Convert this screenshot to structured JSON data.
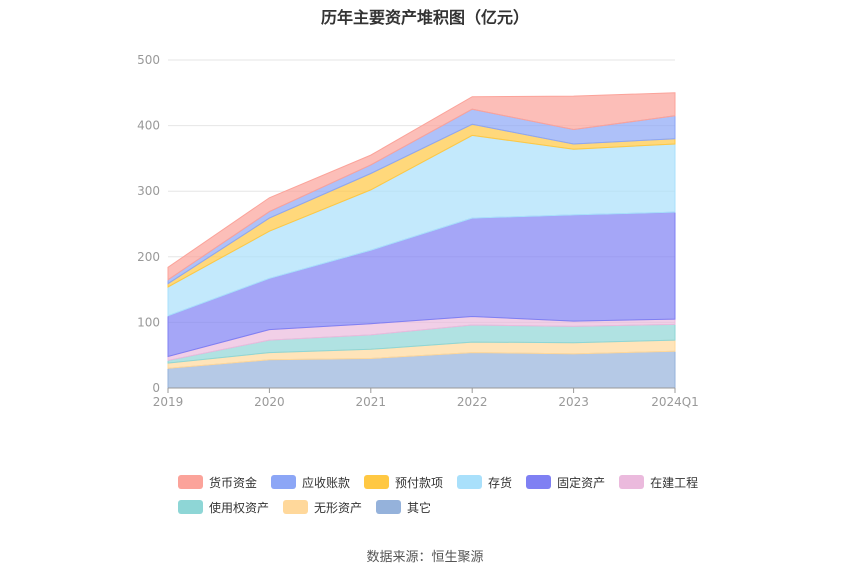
{
  "chart_data": {
    "type": "area",
    "stacked": true,
    "title": "历年主要资产堆积图（亿元）",
    "categories": [
      "2019",
      "2020",
      "2021",
      "2022",
      "2023",
      "2024Q1"
    ],
    "ylim": [
      0,
      500
    ],
    "yticks": [
      0,
      100,
      200,
      300,
      400,
      500
    ],
    "grid": true,
    "legend_position": "bottom",
    "series": [
      {
        "name": "其它",
        "color": "#95b2db",
        "values": [
          30,
          43,
          45,
          54,
          52,
          56
        ]
      },
      {
        "name": "无形资产",
        "color": "#ffd89b",
        "values": [
          8,
          11,
          14,
          16,
          17,
          17
        ]
      },
      {
        "name": "使用权资产",
        "color": "#8ed6d6",
        "values": [
          4,
          19,
          22,
          26,
          25,
          24
        ]
      },
      {
        "name": "在建工程",
        "color": "#ebbadd",
        "values": [
          6,
          16,
          17,
          13,
          8,
          8
        ]
      },
      {
        "name": "固定资产",
        "color": "#7f80f3",
        "values": [
          62,
          78,
          112,
          150,
          162,
          163
        ]
      },
      {
        "name": "存货",
        "color": "#a9e0fb",
        "values": [
          44,
          72,
          92,
          126,
          100,
          104
        ]
      },
      {
        "name": "预付款项",
        "color": "#ffc843",
        "values": [
          5,
          20,
          25,
          17,
          8,
          8
        ]
      },
      {
        "name": "应收账款",
        "color": "#8ca6f6",
        "values": [
          6,
          10,
          13,
          23,
          22,
          35
        ]
      },
      {
        "name": "货币资金",
        "color": "#fba39a",
        "values": [
          19,
          21,
          15,
          19,
          51,
          35
        ]
      }
    ]
  },
  "legend_order": [
    "货币资金",
    "应收账款",
    "预付款项",
    "存货",
    "固定资产",
    "在建工程",
    "使用权资产",
    "无形资产",
    "其它"
  ],
  "footer": {
    "source": "数据来源：恒生聚源"
  }
}
